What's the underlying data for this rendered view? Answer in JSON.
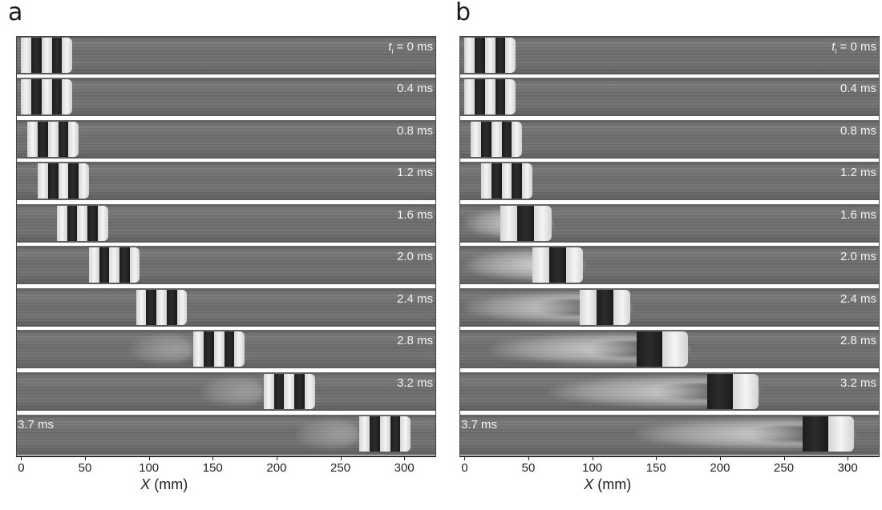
{
  "panels": [
    {
      "letter": "a",
      "times": [
        {
          "t": "= 0 ms",
          "first": true
        },
        {
          "t": "0.4 ms"
        },
        {
          "t": "0.8 ms"
        },
        {
          "t": "1.2 ms"
        },
        {
          "t": "1.6 ms"
        },
        {
          "t": "2.0 ms"
        },
        {
          "t": "2.4 ms"
        },
        {
          "t": "2.8 ms"
        },
        {
          "t": "3.2 ms"
        },
        {
          "t": "3.7 ms",
          "leftLabel": true
        }
      ],
      "projectile_rear_mm": [
        0,
        0,
        5,
        13,
        28,
        53,
        90,
        135,
        190,
        265
      ],
      "mode": "intact"
    },
    {
      "letter": "b",
      "times": [
        {
          "t": "= 0 ms",
          "first": true
        },
        {
          "t": "0.4 ms"
        },
        {
          "t": "0.8 ms"
        },
        {
          "t": "1.2 ms"
        },
        {
          "t": "1.6 ms"
        },
        {
          "t": "2.0 ms"
        },
        {
          "t": "2.4 ms"
        },
        {
          "t": "2.8 ms"
        },
        {
          "t": "3.2 ms"
        },
        {
          "t": "3.7 ms",
          "leftLabel": true
        }
      ],
      "projectile_rear_mm": [
        0,
        0,
        5,
        13,
        28,
        53,
        90,
        135,
        190,
        265
      ],
      "mode": "eroding"
    }
  ],
  "time_symbol": "t",
  "time_subscript": "i",
  "axis": {
    "ticks": [
      "0",
      "50",
      "100",
      "150",
      "200",
      "250",
      "300"
    ],
    "tick_values": [
      0,
      50,
      100,
      150,
      200,
      250,
      300
    ],
    "range_mm": [
      -4,
      325
    ],
    "label_var": "X",
    "label_unit": " (mm)"
  }
}
